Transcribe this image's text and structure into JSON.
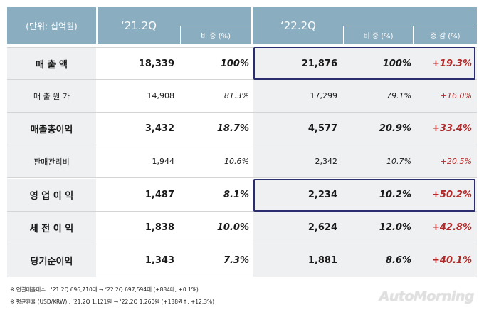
{
  "header": {
    "unit": "(단위: 십억원)",
    "period_2021": "‘21.2Q",
    "period_2022": "‘22.2Q",
    "share_2021": "비 중 (%)",
    "share_2022": "비 중 (%)",
    "change": "증 감 (%)"
  },
  "rows": [
    {
      "label": "매 출 액",
      "v2021": "18,339",
      "s2021": "100%",
      "v2022": "21,876",
      "s2022": "100%",
      "change": "+19.3%"
    },
    {
      "label": "매 출 원 가",
      "v2021": "14,908",
      "s2021": "81.3%",
      "v2022": "17,299",
      "s2022": "79.1%",
      "change": "+16.0%"
    },
    {
      "label": "매출총이익",
      "v2021": "3,432",
      "s2021": "18.7%",
      "v2022": "4,577",
      "s2022": "20.9%",
      "change": "+33.4%"
    },
    {
      "label": "판매관리비",
      "v2021": "1,944",
      "s2021": "10.6%",
      "v2022": "2,342",
      "s2022": "10.7%",
      "change": "+20.5%"
    },
    {
      "label": "영 업 이 익",
      "v2021": "1,487",
      "s2021": "8.1%",
      "v2022": "2,234",
      "s2022": "10.2%",
      "change": "+50.2%"
    },
    {
      "label": "세 전 이 익",
      "v2021": "1,838",
      "s2021": "10.0%",
      "v2022": "2,624",
      "s2022": "12.0%",
      "change": "+42.8%"
    },
    {
      "label": "당기순이익",
      "v2021": "1,343",
      "s2021": "7.3%",
      "v2022": "1,881",
      "s2022": "8.6%",
      "change": "+40.1%"
    }
  ],
  "notes": [
    "※  연결매출대수 : ‘21.2Q 696,710대  →  ‘22.2Q 697,594대 (+884대, +0.1%)",
    "※  평균환율 (USD/KRW) : ‘21.2Q 1,121원  →  ‘22.2Q 1,260원 (+138원↑, +12.3%)"
  ],
  "watermark": "AutoMorning"
}
